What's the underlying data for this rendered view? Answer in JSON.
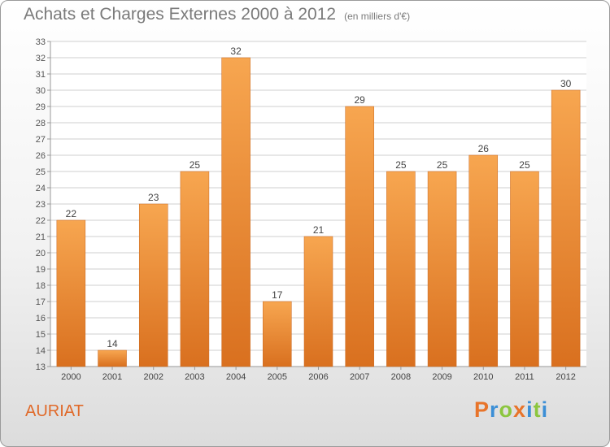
{
  "title": "Achats et Charges Externes 2000 à 2012",
  "subtitle": "(en milliers d'€)",
  "place": "AURIAT",
  "logo": {
    "text": "Proxiti",
    "letters": [
      "P",
      "r",
      "o",
      "x",
      "i",
      "t",
      "i"
    ],
    "colors": [
      "#e8742a",
      "#3c8fd6",
      "#8cc63f",
      "#e8742a",
      "#3c8fd6",
      "#8cc63f",
      "#3c8fd6"
    ]
  },
  "colors": {
    "bar_light": "#f7a650",
    "bar_dark": "#d9701f",
    "title": "#7a7a7a",
    "place": "#e06a2a",
    "grid": "#cfcfcf"
  },
  "chart_data": {
    "type": "bar",
    "categories": [
      "2000",
      "2001",
      "2002",
      "2003",
      "2004",
      "2005",
      "2006",
      "2007",
      "2008",
      "2009",
      "2010",
      "2011",
      "2012"
    ],
    "values": [
      22,
      14,
      23,
      25,
      32,
      17,
      21,
      29,
      25,
      25,
      26,
      25,
      30
    ],
    "ylim": [
      13,
      33
    ],
    "yticks": [
      13,
      14,
      15,
      16,
      17,
      18,
      19,
      20,
      21,
      22,
      23,
      24,
      25,
      26,
      27,
      28,
      29,
      30,
      31,
      32,
      33
    ],
    "grid": true,
    "data_labels": true
  }
}
